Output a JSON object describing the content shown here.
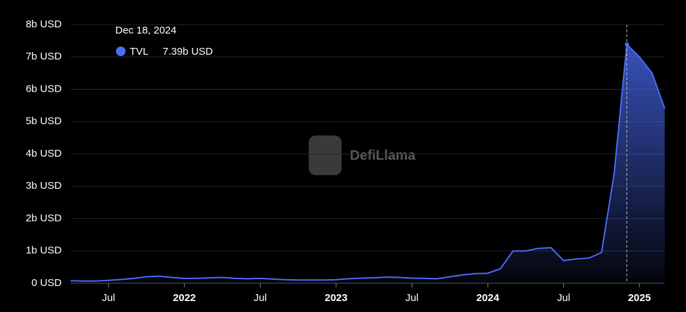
{
  "chart_data": {
    "type": "area",
    "watermark": "DefiLlama",
    "x": [
      "2021-04",
      "2021-05",
      "2021-06",
      "2021-07",
      "2021-08",
      "2021-09",
      "2021-10",
      "2021-11",
      "2021-12",
      "2022-01",
      "2022-02",
      "2022-03",
      "2022-04",
      "2022-05",
      "2022-06",
      "2022-07",
      "2022-08",
      "2022-09",
      "2022-10",
      "2022-11",
      "2022-12",
      "2023-01",
      "2023-02",
      "2023-03",
      "2023-04",
      "2023-05",
      "2023-06",
      "2023-07",
      "2023-08",
      "2023-09",
      "2023-10",
      "2023-11",
      "2023-12",
      "2024-01",
      "2024-02",
      "2024-03",
      "2024-04",
      "2024-05",
      "2024-06",
      "2024-07",
      "2024-08",
      "2024-09",
      "2024-10",
      "2024-11",
      "2024-12",
      "2025-01",
      "2025-02",
      "2025-03"
    ],
    "series": [
      {
        "name": "TVL",
        "color": "#4a6cf7",
        "values": [
          80000000,
          70000000,
          70000000,
          90000000,
          120000000,
          150000000,
          200000000,
          220000000,
          180000000,
          150000000,
          150000000,
          170000000,
          180000000,
          150000000,
          140000000,
          150000000,
          130000000,
          110000000,
          100000000,
          100000000,
          100000000,
          110000000,
          140000000,
          160000000,
          170000000,
          190000000,
          180000000,
          160000000,
          150000000,
          140000000,
          200000000,
          260000000,
          300000000,
          310000000,
          450000000,
          1000000000,
          1000000000,
          1080000000,
          1100000000,
          700000000,
          750000000,
          780000000,
          950000000,
          3400000000,
          7390000000,
          7000000000,
          6500000000,
          5400000000
        ]
      }
    ],
    "hover": {
      "date": "Dec 18, 2024",
      "x": "2024-12",
      "value": 7390000000,
      "label": "7.39b USD"
    },
    "xlim": [
      "2021-04",
      "2025-03"
    ],
    "xticks": [
      {
        "value": "2021-07",
        "label": "Jul"
      },
      {
        "value": "2022-01",
        "label": "2022"
      },
      {
        "value": "2022-07",
        "label": "Jul"
      },
      {
        "value": "2023-01",
        "label": "2023"
      },
      {
        "value": "2023-07",
        "label": "Jul"
      },
      {
        "value": "2024-01",
        "label": "2024"
      },
      {
        "value": "2024-07",
        "label": "Jul"
      },
      {
        "value": "2025-01",
        "label": "2025"
      }
    ],
    "ylim": [
      0,
      8000000000
    ],
    "yticks": [
      {
        "value": 0,
        "label": "0 USD"
      },
      {
        "value": 1000000000,
        "label": "1b USD"
      },
      {
        "value": 2000000000,
        "label": "2b USD"
      },
      {
        "value": 3000000000,
        "label": "3b USD"
      },
      {
        "value": 4000000000,
        "label": "4b USD"
      },
      {
        "value": 5000000000,
        "label": "5b USD"
      },
      {
        "value": 6000000000,
        "label": "6b USD"
      },
      {
        "value": 7000000000,
        "label": "7b USD"
      },
      {
        "value": 8000000000,
        "label": "8b USD"
      }
    ],
    "grid": true
  }
}
